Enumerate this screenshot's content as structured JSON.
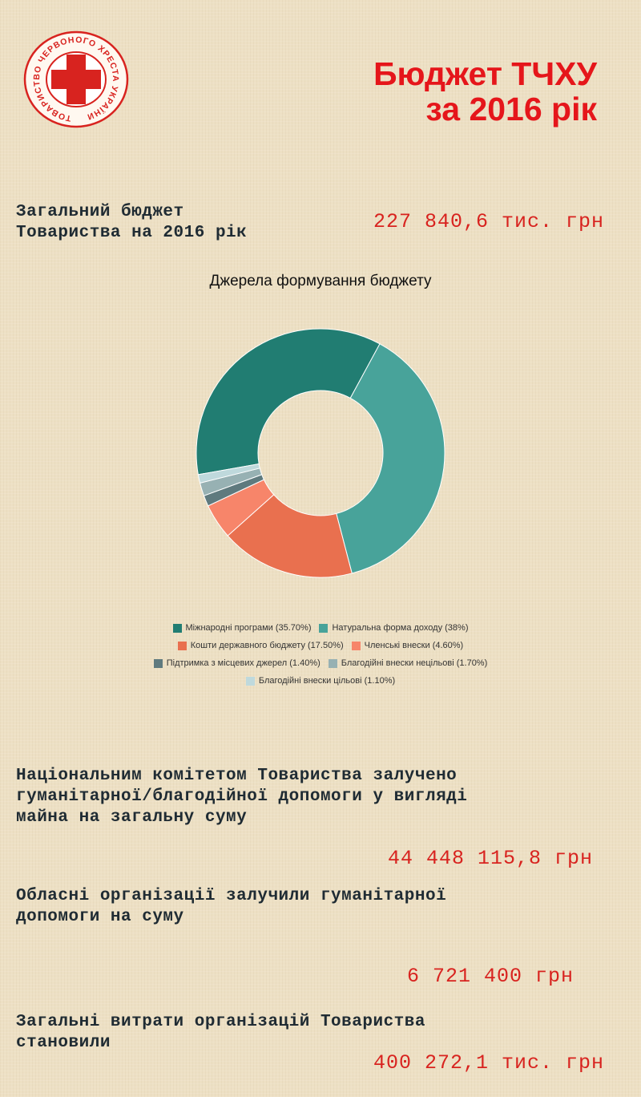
{
  "logo": {
    "ring_text": "ТОВАРИСТВО ЧЕРВОНОГО ХРЕСТА УКРАЇНИ",
    "color": "#d8231f"
  },
  "header": {
    "title": "Бюджет ТЧХУ\nза 2016 рік"
  },
  "total_budget": {
    "label": "Загальний бюджет\nТовариства на 2016 рік",
    "value": "227 840,6 тис. грн"
  },
  "chart_data": {
    "type": "pie",
    "title": "Джерела формування бюджету",
    "legend_position": "bottom",
    "slices": [
      {
        "label": "Міжнародні програми (35.70%)",
        "value": 35.7,
        "color": "#217d72"
      },
      {
        "label": "Натуральна форма доходу (38%)",
        "value": 38,
        "color": "#48a39a"
      },
      {
        "label": "Кошти державного бюджету (17.50%)",
        "value": 17.5,
        "color": "#e9704f"
      },
      {
        "label": "Членські внески (4.60%)",
        "value": 4.6,
        "color": "#f7856a"
      },
      {
        "label": "Підтримка з місцевих джерел (1.40%)",
        "value": 1.4,
        "color": "#5f7a7e"
      },
      {
        "label": "Благодійні внески нецільові (1.70%)",
        "value": 1.7,
        "color": "#97b1b3"
      },
      {
        "label": "Благодійні внески цільові (1.10%)",
        "value": 1.1,
        "color": "#bfd9dc"
      }
    ]
  },
  "stats": [
    {
      "label": "Національним комітетом Товариства залучено\nгуманітарної/благодійної допомоги  у вигляді\nмайна на загальну суму",
      "value": "44 448 115,8 грн"
    },
    {
      "label": "Обласні організації залучили гуманітарної\nдопомоги на суму",
      "value": "6 721 400 грн"
    },
    {
      "label": "Загальні витрати організацій Товариства\nстановили",
      "value": "400 272,1 тис. грн"
    }
  ]
}
